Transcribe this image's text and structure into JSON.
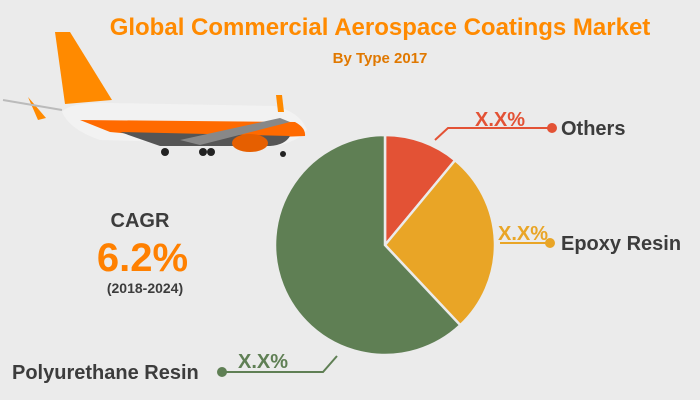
{
  "chart_data": {
    "type": "pie",
    "title": "Global Commercial Aerospace Coatings Market",
    "subtitle": "By Type 2017",
    "slices": [
      {
        "label": "Others",
        "value": 11,
        "value_label": "X.X%",
        "color": "#e35235"
      },
      {
        "label": "Epoxy Resin",
        "value": 27,
        "value_label": "X.X%",
        "color": "#e9a526"
      },
      {
        "label": "Polyurethane Resin",
        "value": 62,
        "value_label": "X.X%",
        "color": "#5f7f54"
      }
    ]
  },
  "cagr": {
    "label": "CAGR",
    "value": "6.2%",
    "period": "(2018-2024)"
  },
  "colors": {
    "title": "#ff8a00",
    "background": "#ebebeb",
    "text": "#3c3c3c"
  },
  "decor": {
    "image": "airplane"
  }
}
